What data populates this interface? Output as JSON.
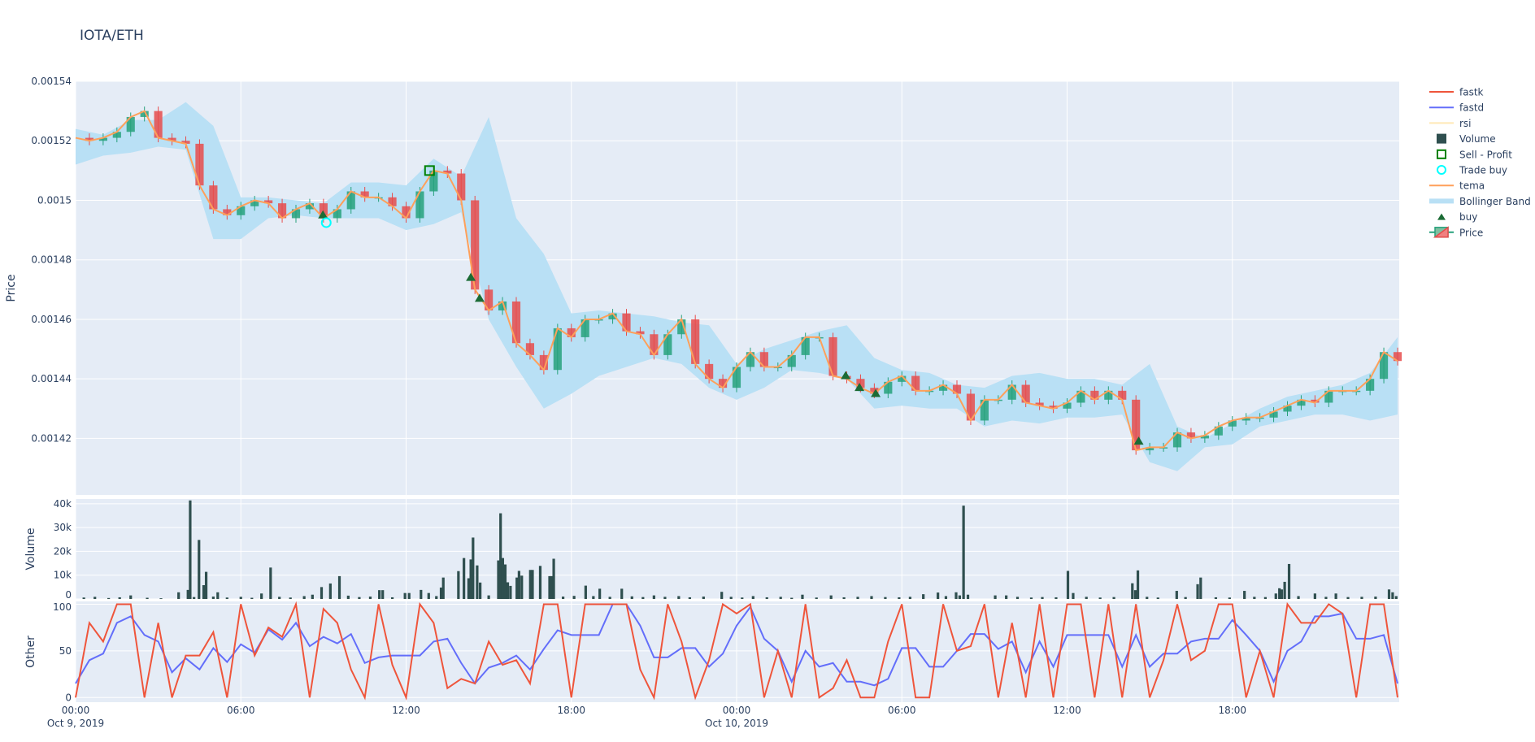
{
  "title": "IOTA/ETH",
  "colors": {
    "plot_bg": "#e5ecf6",
    "grid": "#ffffff",
    "text": "#2a3f5f",
    "fastk": "#ef553b",
    "fastd": "#636efa",
    "rsi": "#ffe4a3",
    "volume": "#2f4f4f",
    "sell_profit": "#008000",
    "trade_buy": "#00ffff",
    "tema": "#ffa05a",
    "bollinger": "#b9e0f5",
    "buy": "#1b6b35",
    "candle_up": "#26a17b",
    "candle_down": "#e64c4c"
  },
  "legend": [
    {
      "label": "fastk",
      "symbol": "line",
      "color_key": "fastk"
    },
    {
      "label": "fastd",
      "symbol": "line",
      "color_key": "fastd"
    },
    {
      "label": "rsi",
      "symbol": "line-faded",
      "color_key": "rsi"
    },
    {
      "label": "Volume",
      "symbol": "square",
      "color_key": "volume"
    },
    {
      "label": "Sell - Profit",
      "symbol": "square-open",
      "color_key": "sell_profit"
    },
    {
      "label": "Trade buy",
      "symbol": "circle-open",
      "color_key": "trade_buy"
    },
    {
      "label": "tema",
      "symbol": "line",
      "color_key": "tema"
    },
    {
      "label": "Bollinger Band",
      "symbol": "band",
      "color_key": "bollinger"
    },
    {
      "label": "buy",
      "symbol": "triangle",
      "color_key": "buy"
    },
    {
      "label": "Price",
      "symbol": "candle",
      "color_key": "candle_up"
    }
  ],
  "chart_data": [
    {
      "type": "candlestick+line",
      "panel": "price",
      "ylabel": "Price",
      "ylim": [
        0.001401,
        0.00154
      ],
      "yticks": [
        "0.00154",
        "0.00152",
        "0.0015",
        "0.00148",
        "0.00146",
        "0.00144",
        "0.00142"
      ],
      "ytick_values": [
        0.00154,
        0.00152,
        0.0015,
        0.00148,
        0.00146,
        0.00144,
        0.00142
      ],
      "x_hours_from": "Oct 9, 2019 00:00",
      "x_step_hours": 0.5,
      "tema": [
        0.001521,
        0.00152,
        0.001521,
        0.001523,
        0.001528,
        0.00153,
        0.001521,
        0.00152,
        0.001519,
        0.001505,
        0.001497,
        0.001495,
        0.001498,
        0.0015,
        0.001499,
        0.001494,
        0.001497,
        0.001499,
        0.001494,
        0.001497,
        0.001503,
        0.001501,
        0.001501,
        0.001498,
        0.001494,
        0.001503,
        0.00151,
        0.001509,
        0.0015,
        0.00147,
        0.001463,
        0.001466,
        0.001452,
        0.001448,
        0.001443,
        0.001457,
        0.001454,
        0.00146,
        0.00146,
        0.001462,
        0.001456,
        0.001455,
        0.001448,
        0.001455,
        0.00146,
        0.001445,
        0.00144,
        0.001437,
        0.001444,
        0.001449,
        0.001444,
        0.001444,
        0.001448,
        0.001454,
        0.001454,
        0.001441,
        0.00144,
        0.001437,
        0.001435,
        0.001439,
        0.001441,
        0.001436,
        0.001436,
        0.001438,
        0.001435,
        0.001426,
        0.001433,
        0.001433,
        0.001438,
        0.001432,
        0.001431,
        0.00143,
        0.001432,
        0.001436,
        0.001433,
        0.001436,
        0.001433,
        0.001416,
        0.001417,
        0.001417,
        0.001422,
        0.00142,
        0.001421,
        0.001424,
        0.001426,
        0.001427,
        0.001427,
        0.001429,
        0.001431,
        0.001433,
        0.001432,
        0.001436,
        0.001436,
        0.001436,
        0.00144,
        0.001449,
        0.001446
      ],
      "bollinger_step_hours": 1,
      "bollinger_upper": [
        0.001524,
        0.001522,
        0.001527,
        0.001527,
        0.001533,
        0.001525,
        0.001501,
        0.001501,
        0.0015,
        0.001499,
        0.001506,
        0.001506,
        0.001505,
        0.001514,
        0.001508,
        0.001528,
        0.001494,
        0.001482,
        0.001462,
        0.001463,
        0.001462,
        0.001461,
        0.001459,
        0.001458,
        0.001445,
        0.00145,
        0.001453,
        0.001456,
        0.001458,
        0.001447,
        0.001443,
        0.001442,
        0.001438,
        0.001437,
        0.001441,
        0.001442,
        0.00144,
        0.00144,
        0.001438,
        0.001445,
        0.001424,
        0.00142,
        0.001425,
        0.00143,
        0.001434,
        0.001436,
        0.001438,
        0.001442,
        0.001454
      ],
      "bollinger_lower": [
        0.001512,
        0.001515,
        0.001516,
        0.001518,
        0.001517,
        0.001487,
        0.001487,
        0.001494,
        0.001495,
        0.001494,
        0.001494,
        0.001494,
        0.00149,
        0.001492,
        0.001496,
        0.00146,
        0.001444,
        0.00143,
        0.001435,
        0.001441,
        0.001444,
        0.001447,
        0.001445,
        0.001437,
        0.001433,
        0.001437,
        0.001443,
        0.001442,
        0.00144,
        0.00143,
        0.001431,
        0.00143,
        0.00143,
        0.001424,
        0.001426,
        0.001425,
        0.001427,
        0.001427,
        0.001428,
        0.001412,
        0.001409,
        0.001417,
        0.001418,
        0.001424,
        0.001426,
        0.001428,
        0.001428,
        0.001426,
        0.001428
      ],
      "buy": [
        [
          8.98,
          0.001495
        ],
        [
          14.35,
          0.001474
        ],
        [
          14.67,
          0.001467
        ],
        [
          27.96,
          0.001441
        ],
        [
          28.46,
          0.001437
        ],
        [
          29.05,
          0.001435
        ],
        [
          38.6,
          0.001419
        ]
      ],
      "trade_buy": [
        [
          9.1,
          0.0014925
        ]
      ],
      "sell_profit": [
        [
          12.85,
          0.00151
        ]
      ]
    },
    {
      "type": "bar",
      "panel": "volume",
      "ylabel": "Volume",
      "ylim": [
        0,
        42000
      ],
      "yticks": [
        "0",
        "10k",
        "20k",
        "30k",
        "40k"
      ],
      "ytick_values": [
        0,
        10000,
        20000,
        30000,
        40000
      ],
      "bars_hour_value": [
        [
          0.3,
          600
        ],
        [
          0.7,
          900
        ],
        [
          1.2,
          400
        ],
        [
          1.6,
          700
        ],
        [
          2.0,
          1500
        ],
        [
          2.6,
          500
        ],
        [
          3.1,
          300
        ],
        [
          3.74,
          2800
        ],
        [
          4.08,
          3800
        ],
        [
          4.16,
          41400
        ],
        [
          4.3,
          800
        ],
        [
          4.48,
          24800
        ],
        [
          4.65,
          5800
        ],
        [
          4.74,
          11400
        ],
        [
          5.0,
          1000
        ],
        [
          5.16,
          2800
        ],
        [
          5.5,
          600
        ],
        [
          6.0,
          900
        ],
        [
          6.4,
          500
        ],
        [
          6.75,
          2300
        ],
        [
          7.08,
          13200
        ],
        [
          7.4,
          900
        ],
        [
          7.8,
          600
        ],
        [
          8.3,
          1200
        ],
        [
          8.6,
          1800
        ],
        [
          8.93,
          5000
        ],
        [
          9.25,
          6500
        ],
        [
          9.58,
          9600
        ],
        [
          9.9,
          1400
        ],
        [
          10.3,
          800
        ],
        [
          10.7,
          1000
        ],
        [
          11.03,
          3700
        ],
        [
          11.15,
          3700
        ],
        [
          11.5,
          700
        ],
        [
          11.96,
          2500
        ],
        [
          12.11,
          2500
        ],
        [
          12.54,
          3800
        ],
        [
          12.82,
          2500
        ],
        [
          13.1,
          1200
        ],
        [
          13.27,
          4800
        ],
        [
          13.35,
          9000
        ],
        [
          13.9,
          11700
        ],
        [
          14.1,
          17200
        ],
        [
          14.27,
          8700
        ],
        [
          14.35,
          16600
        ],
        [
          14.43,
          25800
        ],
        [
          14.58,
          14100
        ],
        [
          14.69,
          6900
        ],
        [
          15.0,
          1500
        ],
        [
          15.35,
          16200
        ],
        [
          15.43,
          36000
        ],
        [
          15.51,
          17200
        ],
        [
          15.6,
          14500
        ],
        [
          15.69,
          7000
        ],
        [
          15.79,
          5500
        ],
        [
          16.02,
          9000
        ],
        [
          16.1,
          11800
        ],
        [
          16.2,
          9800
        ],
        [
          16.51,
          12200
        ],
        [
          16.59,
          12200
        ],
        [
          16.87,
          13900
        ],
        [
          17.21,
          9600
        ],
        [
          17.28,
          9600
        ],
        [
          17.36,
          16900
        ],
        [
          17.7,
          1000
        ],
        [
          18.1,
          1300
        ],
        [
          18.52,
          5600
        ],
        [
          18.8,
          1200
        ],
        [
          19.03,
          4300
        ],
        [
          19.4,
          900
        ],
        [
          19.83,
          4300
        ],
        [
          20.2,
          1100
        ],
        [
          20.6,
          800
        ],
        [
          21.0,
          1500
        ],
        [
          21.4,
          900
        ],
        [
          21.9,
          1200
        ],
        [
          22.3,
          700
        ],
        [
          22.8,
          1000
        ],
        [
          23.46,
          3000
        ],
        [
          23.8,
          900
        ],
        [
          24.2,
          600
        ],
        [
          24.6,
          1200
        ],
        [
          25.1,
          700
        ],
        [
          25.6,
          900
        ],
        [
          26.0,
          500
        ],
        [
          26.39,
          1800
        ],
        [
          26.9,
          600
        ],
        [
          27.43,
          1500
        ],
        [
          27.9,
          700
        ],
        [
          28.4,
          900
        ],
        [
          28.9,
          1200
        ],
        [
          29.4,
          800
        ],
        [
          29.9,
          700
        ],
        [
          30.3,
          900
        ],
        [
          30.78,
          2000
        ],
        [
          31.31,
          2700
        ],
        [
          31.6,
          1200
        ],
        [
          31.97,
          2800
        ],
        [
          32.1,
          1500
        ],
        [
          32.24,
          39200
        ],
        [
          32.4,
          1800
        ],
        [
          33.39,
          1500
        ],
        [
          33.79,
          1500
        ],
        [
          34.2,
          900
        ],
        [
          34.7,
          600
        ],
        [
          35.1,
          800
        ],
        [
          35.6,
          700
        ],
        [
          36.03,
          11800
        ],
        [
          36.22,
          2500
        ],
        [
          36.7,
          900
        ],
        [
          37.2,
          600
        ],
        [
          37.7,
          800
        ],
        [
          38.37,
          6600
        ],
        [
          38.48,
          3700
        ],
        [
          38.57,
          12000
        ],
        [
          38.9,
          900
        ],
        [
          39.3,
          600
        ],
        [
          39.98,
          3400
        ],
        [
          40.3,
          800
        ],
        [
          40.74,
          6200
        ],
        [
          40.85,
          9000
        ],
        [
          41.4,
          700
        ],
        [
          41.9,
          600
        ],
        [
          42.44,
          3400
        ],
        [
          42.8,
          900
        ],
        [
          43.2,
          800
        ],
        [
          43.58,
          2300
        ],
        [
          43.71,
          4500
        ],
        [
          43.79,
          4000
        ],
        [
          43.9,
          7200
        ],
        [
          44.06,
          14700
        ],
        [
          44.4,
          1200
        ],
        [
          45.0,
          2300
        ],
        [
          45.4,
          900
        ],
        [
          45.76,
          2300
        ],
        [
          46.2,
          800
        ],
        [
          46.7,
          900
        ],
        [
          47.2,
          1000
        ],
        [
          47.69,
          4000
        ],
        [
          47.82,
          2800
        ],
        [
          47.95,
          1200
        ]
      ]
    },
    {
      "type": "line",
      "panel": "other",
      "ylabel": "Other",
      "ylim": [
        -5,
        103
      ],
      "yticks": [
        "0",
        "50",
        "100"
      ],
      "ytick_values": [
        0,
        50,
        100
      ],
      "x_step_hours": 0.5,
      "series": [
        {
          "name": "fastk",
          "values": [
            0,
            80,
            60,
            100,
            100,
            0,
            80,
            0,
            45,
            45,
            70,
            0,
            100,
            45,
            75,
            65,
            100,
            0,
            95,
            80,
            30,
            0,
            100,
            35,
            0,
            100,
            80,
            10,
            20,
            15,
            60,
            35,
            40,
            15,
            100,
            100,
            0,
            100,
            100,
            100,
            100,
            30,
            0,
            100,
            60,
            0,
            40,
            100,
            90,
            100,
            0,
            50,
            0,
            100,
            0,
            10,
            40,
            0,
            0,
            60,
            100,
            0,
            0,
            100,
            50,
            55,
            100,
            0,
            80,
            0,
            100,
            0,
            100,
            100,
            0,
            100,
            0,
            100,
            0,
            40,
            100,
            40,
            50,
            100,
            100,
            0,
            50,
            0,
            100,
            80,
            80,
            100,
            90,
            0,
            100,
            100,
            0
          ]
        },
        {
          "name": "fastd",
          "values": [
            15,
            40,
            47,
            80,
            87,
            67,
            60,
            27,
            42,
            30,
            53,
            38,
            57,
            48,
            73,
            62,
            80,
            55,
            65,
            58,
            68,
            37,
            43,
            45,
            45,
            45,
            60,
            63,
            37,
            15,
            32,
            37,
            45,
            30,
            52,
            72,
            67,
            67,
            67,
            100,
            100,
            77,
            43,
            43,
            53,
            53,
            33,
            47,
            77,
            97,
            63,
            50,
            17,
            50,
            33,
            37,
            17,
            17,
            13,
            20,
            53,
            53,
            33,
            33,
            50,
            68,
            68,
            52,
            60,
            27,
            60,
            33,
            67,
            67,
            67,
            67,
            33,
            67,
            33,
            47,
            47,
            60,
            63,
            63,
            83,
            67,
            50,
            17,
            50,
            60,
            87,
            87,
            90,
            63,
            63,
            67,
            15
          ]
        }
      ]
    }
  ],
  "x_axis": {
    "ticks": [
      {
        "hour": 0,
        "time": "00:00",
        "date": "Oct 9, 2019"
      },
      {
        "hour": 6,
        "time": "06:00",
        "date": ""
      },
      {
        "hour": 12,
        "time": "12:00",
        "date": ""
      },
      {
        "hour": 18,
        "time": "18:00",
        "date": ""
      },
      {
        "hour": 24,
        "time": "00:00",
        "date": "Oct 10, 2019"
      },
      {
        "hour": 30,
        "time": "06:00",
        "date": ""
      },
      {
        "hour": 36,
        "time": "12:00",
        "date": ""
      },
      {
        "hour": 42,
        "time": "18:00",
        "date": ""
      }
    ]
  }
}
